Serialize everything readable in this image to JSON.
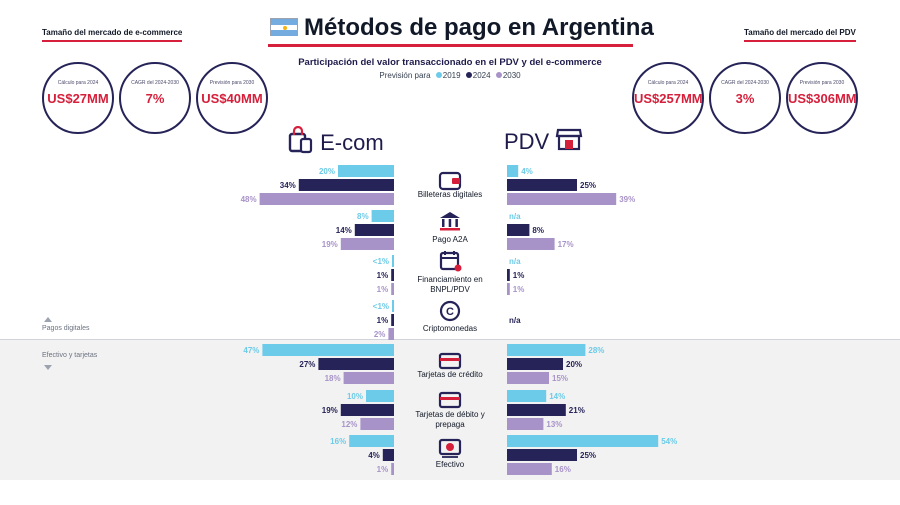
{
  "header": {
    "title": "Métodos de pago en Argentina",
    "subtitle": "Participación del valor transaccionado en el PDV y del e-commerce",
    "legend_prefix": "Previsión para",
    "legend": [
      "2019",
      "2024",
      "2030"
    ]
  },
  "colors": {
    "y2019": "#6ccbe8",
    "y2024": "#252357",
    "y2030": "#a893c9",
    "accent": "#d61f3b"
  },
  "left_stats": {
    "title": "Tamaño del mercado de e-commerce",
    "items": [
      {
        "label": "Cálculo para 2024",
        "value": "US$27MM"
      },
      {
        "label": "CAGR del 2024-2030",
        "value": "7%"
      },
      {
        "label": "Previsión para 2030",
        "value": "US$40MM"
      }
    ]
  },
  "right_stats": {
    "title": "Tamaño del mercado del PDV",
    "items": [
      {
        "label": "Cálculo para 2024",
        "value": "US$257MM"
      },
      {
        "label": "CAGR del 2024-2030",
        "value": "3%"
      },
      {
        "label": "Previsión para 2030",
        "value": "US$306MM"
      }
    ]
  },
  "sections": {
    "ecom": "E-com",
    "pdv": "PDV",
    "digital_note": "Pagos digitales",
    "cash_note": "Efectivo y tarjetas"
  },
  "categories": [
    {
      "label": "Billeteras digitales",
      "icon": "wallet-icon"
    },
    {
      "label": "Pago A2A",
      "icon": "bank-icon"
    },
    {
      "label": "Financiamiento en BNPL/PDV",
      "icon": "calendar-icon"
    },
    {
      "label": "Criptomonedas",
      "icon": "crypto-coin-icon"
    },
    {
      "label": "Tarjetas de crédito",
      "icon": "credit-card-icon"
    },
    {
      "label": "Tarjetas de débito y prepaga",
      "icon": "debit-card-icon"
    },
    {
      "label": "Efectivo",
      "icon": "cash-icon"
    }
  ],
  "chart_data": {
    "type": "bar",
    "orientation": "horizontal-butterfly",
    "categories": [
      "Billeteras digitales",
      "Pago A2A",
      "Financiamiento en BNPL/PDV",
      "Criptomonedas",
      "Tarjetas de crédito",
      "Tarjetas de débito y prepaga",
      "Efectivo"
    ],
    "years": [
      "2019",
      "2024",
      "2030"
    ],
    "ecom": {
      "values": [
        [
          20,
          34,
          48
        ],
        [
          8,
          14,
          19
        ],
        [
          0.5,
          1,
          1
        ],
        [
          0.5,
          1,
          2
        ],
        [
          47,
          27,
          18
        ],
        [
          10,
          19,
          12
        ],
        [
          16,
          4,
          1
        ]
      ],
      "labels": [
        [
          "20%",
          "34%",
          "48%"
        ],
        [
          "8%",
          "14%",
          "19%"
        ],
        [
          "<1%",
          "1%",
          "1%"
        ],
        [
          "<1%",
          "1%",
          "2%"
        ],
        [
          "47%",
          "27%",
          "18%"
        ],
        [
          "10%",
          "19%",
          "12%"
        ],
        [
          "16%",
          "4%",
          "1%"
        ]
      ]
    },
    "pdv": {
      "values": [
        [
          4,
          25,
          39
        ],
        [
          null,
          8,
          17
        ],
        [
          null,
          1,
          1
        ],
        [
          null,
          null,
          null
        ],
        [
          28,
          20,
          15
        ],
        [
          14,
          21,
          13
        ],
        [
          54,
          25,
          16
        ]
      ],
      "labels": [
        [
          "4%",
          "25%",
          "39%"
        ],
        [
          "n/a",
          "8%",
          "17%"
        ],
        [
          "n/a",
          "1%",
          "1%"
        ],
        [
          "n/a",
          null,
          null
        ],
        [
          "28%",
          "20%",
          "15%"
        ],
        [
          "14%",
          "21%",
          "13%"
        ],
        [
          "54%",
          "25%",
          "16%"
        ]
      ]
    },
    "max_value": 54
  }
}
